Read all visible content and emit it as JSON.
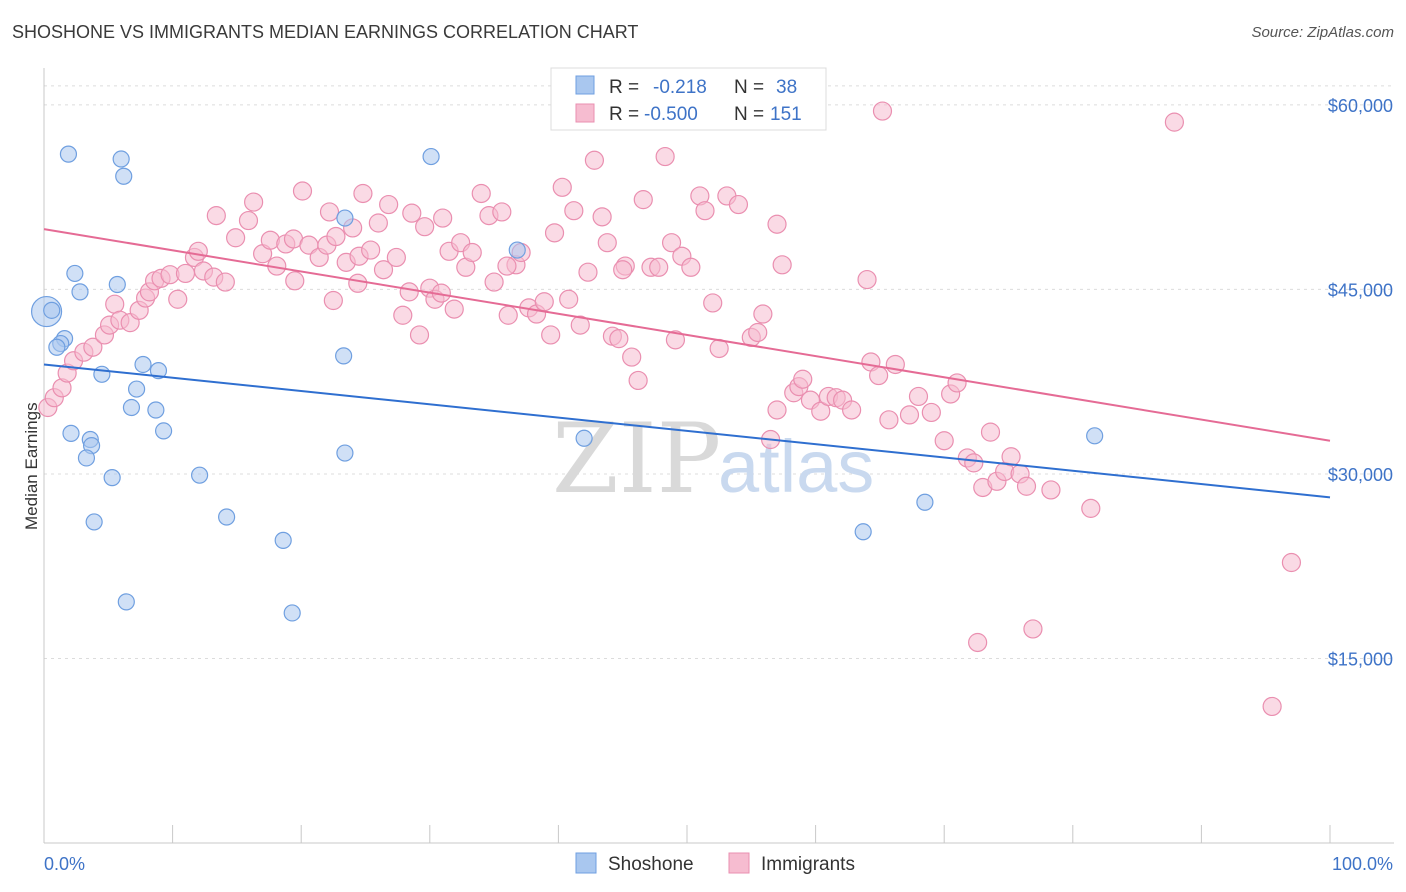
{
  "header": {
    "title": "SHOSHONE VS IMMIGRANTS MEDIAN EARNINGS CORRELATION CHART",
    "source": "Source: ZipAtlas.com"
  },
  "watermark": {
    "zip": "ZIP",
    "atlas": "atlas"
  },
  "legend": {
    "rows": [
      {
        "r_label": "R =",
        "r_value": "-0.218",
        "n_label": "N =",
        "n_value": "38",
        "color": "#a9c7ef",
        "stroke": "#6f9fe0"
      },
      {
        "r_label": "R =",
        "r_value": "-0.500",
        "n_label": "N =",
        "n_value": "151",
        "color": "#f6bcd0",
        "stroke": "#ea8fb0"
      }
    ],
    "bottom": [
      {
        "label": "Shoshone",
        "color": "#a9c7ef",
        "stroke": "#6f9fe0"
      },
      {
        "label": "Immigrants",
        "color": "#f6bcd0",
        "stroke": "#ea8fb0"
      }
    ]
  },
  "chart_data": {
    "type": "scatter",
    "title": "SHOSHONE VS IMMIGRANTS MEDIAN EARNINGS CORRELATION CHART",
    "xlabel": "",
    "ylabel": "Median Earnings",
    "xlim": [
      0,
      100
    ],
    "ylim": [
      0,
      63000
    ],
    "x_tick_labels": [
      "0.0%",
      "100.0%"
    ],
    "y_ticks": [
      15000,
      30000,
      45000,
      60000
    ],
    "y_tick_labels": [
      "$15,000",
      "$30,000",
      "$45,000",
      "$60,000"
    ],
    "grid": true,
    "series": [
      {
        "name": "Shoshone",
        "color": "#6f9fe0",
        "fill": "#a9c7ef",
        "trend": {
          "x": [
            0,
            100
          ],
          "y": [
            38900,
            28100
          ]
        },
        "points": [
          {
            "x": 0.2,
            "y": 43200,
            "big": true
          },
          {
            "x": 1.9,
            "y": 56000
          },
          {
            "x": 6.2,
            "y": 54200
          },
          {
            "x": 6.0,
            "y": 55600
          },
          {
            "x": 30.1,
            "y": 55800
          },
          {
            "x": 2.4,
            "y": 46300
          },
          {
            "x": 5.7,
            "y": 45400
          },
          {
            "x": 2.8,
            "y": 44800
          },
          {
            "x": 1.6,
            "y": 41000
          },
          {
            "x": 1.3,
            "y": 40600
          },
          {
            "x": 1.0,
            "y": 40300
          },
          {
            "x": 23.3,
            "y": 39600
          },
          {
            "x": 7.7,
            "y": 38900
          },
          {
            "x": 4.5,
            "y": 38100
          },
          {
            "x": 8.9,
            "y": 38400
          },
          {
            "x": 7.2,
            "y": 36900
          },
          {
            "x": 6.8,
            "y": 35400
          },
          {
            "x": 8.7,
            "y": 35200
          },
          {
            "x": 9.3,
            "y": 33500
          },
          {
            "x": 2.1,
            "y": 33300
          },
          {
            "x": 3.6,
            "y": 32800
          },
          {
            "x": 3.7,
            "y": 32300
          },
          {
            "x": 3.3,
            "y": 31300
          },
          {
            "x": 23.4,
            "y": 31700
          },
          {
            "x": 5.3,
            "y": 29700
          },
          {
            "x": 12.1,
            "y": 29900
          },
          {
            "x": 3.9,
            "y": 26100
          },
          {
            "x": 14.2,
            "y": 26500
          },
          {
            "x": 18.6,
            "y": 24600
          },
          {
            "x": 6.4,
            "y": 19600
          },
          {
            "x": 19.3,
            "y": 18700
          },
          {
            "x": 63.7,
            "y": 25300
          },
          {
            "x": 68.5,
            "y": 27700
          },
          {
            "x": 81.7,
            "y": 33100
          },
          {
            "x": 42.0,
            "y": 32900
          },
          {
            "x": 36.8,
            "y": 48200
          },
          {
            "x": 23.4,
            "y": 50800
          },
          {
            "x": 0.6,
            "y": 43300
          }
        ]
      },
      {
        "name": "Immigrants",
        "color": "#ea8fb0",
        "fill": "#f6bcd0",
        "trend": {
          "x": [
            0,
            100
          ],
          "y": [
            49900,
            32700
          ]
        },
        "points": [
          {
            "x": 0.3,
            "y": 35400
          },
          {
            "x": 0.8,
            "y": 36200
          },
          {
            "x": 1.4,
            "y": 37000
          },
          {
            "x": 1.8,
            "y": 38200
          },
          {
            "x": 2.3,
            "y": 39200
          },
          {
            "x": 3.1,
            "y": 39900
          },
          {
            "x": 3.8,
            "y": 40300
          },
          {
            "x": 4.7,
            "y": 41300
          },
          {
            "x": 5.1,
            "y": 42100
          },
          {
            "x": 5.5,
            "y": 43800
          },
          {
            "x": 5.9,
            "y": 42500
          },
          {
            "x": 6.7,
            "y": 42300
          },
          {
            "x": 7.4,
            "y": 43300
          },
          {
            "x": 7.9,
            "y": 44300
          },
          {
            "x": 8.2,
            "y": 44800
          },
          {
            "x": 8.6,
            "y": 45700
          },
          {
            "x": 9.1,
            "y": 45900
          },
          {
            "x": 9.8,
            "y": 46200
          },
          {
            "x": 10.4,
            "y": 44200
          },
          {
            "x": 11.0,
            "y": 46300
          },
          {
            "x": 11.7,
            "y": 47600
          },
          {
            "x": 12.4,
            "y": 46500
          },
          {
            "x": 13.2,
            "y": 46000
          },
          {
            "x": 14.1,
            "y": 45600
          },
          {
            "x": 12.0,
            "y": 48100
          },
          {
            "x": 13.4,
            "y": 51000
          },
          {
            "x": 14.9,
            "y": 49200
          },
          {
            "x": 15.9,
            "y": 50600
          },
          {
            "x": 16.3,
            "y": 52100
          },
          {
            "x": 17.0,
            "y": 47900
          },
          {
            "x": 17.6,
            "y": 49000
          },
          {
            "x": 18.1,
            "y": 46900
          },
          {
            "x": 18.8,
            "y": 48700
          },
          {
            "x": 19.4,
            "y": 49100
          },
          {
            "x": 19.5,
            "y": 45700
          },
          {
            "x": 20.1,
            "y": 53000
          },
          {
            "x": 20.6,
            "y": 48600
          },
          {
            "x": 21.4,
            "y": 47600
          },
          {
            "x": 22.0,
            "y": 48600
          },
          {
            "x": 22.7,
            "y": 49300
          },
          {
            "x": 22.2,
            "y": 51300
          },
          {
            "x": 23.5,
            "y": 47200
          },
          {
            "x": 24.0,
            "y": 50000
          },
          {
            "x": 24.5,
            "y": 47700
          },
          {
            "x": 24.8,
            "y": 52800
          },
          {
            "x": 25.4,
            "y": 48200
          },
          {
            "x": 26.0,
            "y": 50400
          },
          {
            "x": 26.4,
            "y": 46600
          },
          {
            "x": 26.8,
            "y": 51900
          },
          {
            "x": 27.4,
            "y": 47600
          },
          {
            "x": 27.9,
            "y": 42900
          },
          {
            "x": 28.4,
            "y": 44800
          },
          {
            "x": 28.6,
            "y": 51200
          },
          {
            "x": 29.2,
            "y": 41300
          },
          {
            "x": 29.6,
            "y": 50100
          },
          {
            "x": 30.0,
            "y": 45100
          },
          {
            "x": 30.4,
            "y": 44200
          },
          {
            "x": 30.9,
            "y": 44700
          },
          {
            "x": 31.5,
            "y": 48100
          },
          {
            "x": 31.9,
            "y": 43400
          },
          {
            "x": 32.4,
            "y": 48800
          },
          {
            "x": 32.8,
            "y": 46800
          },
          {
            "x": 33.3,
            "y": 48000
          },
          {
            "x": 34.0,
            "y": 52800
          },
          {
            "x": 34.6,
            "y": 51000
          },
          {
            "x": 35.0,
            "y": 45600
          },
          {
            "x": 35.6,
            "y": 51300
          },
          {
            "x": 36.1,
            "y": 42900
          },
          {
            "x": 36.7,
            "y": 47000
          },
          {
            "x": 37.1,
            "y": 48000
          },
          {
            "x": 37.7,
            "y": 43500
          },
          {
            "x": 38.3,
            "y": 43000
          },
          {
            "x": 38.9,
            "y": 44000
          },
          {
            "x": 39.4,
            "y": 41300
          },
          {
            "x": 39.7,
            "y": 49600
          },
          {
            "x": 40.3,
            "y": 53300
          },
          {
            "x": 40.8,
            "y": 44200
          },
          {
            "x": 41.2,
            "y": 51400
          },
          {
            "x": 41.7,
            "y": 42100
          },
          {
            "x": 42.3,
            "y": 46400
          },
          {
            "x": 42.8,
            "y": 55500
          },
          {
            "x": 43.4,
            "y": 50900
          },
          {
            "x": 43.8,
            "y": 48800
          },
          {
            "x": 44.2,
            "y": 41200
          },
          {
            "x": 44.7,
            "y": 41000
          },
          {
            "x": 45.2,
            "y": 46900
          },
          {
            "x": 45.7,
            "y": 39500
          },
          {
            "x": 46.2,
            "y": 37600
          },
          {
            "x": 46.6,
            "y": 52300
          },
          {
            "x": 47.2,
            "y": 46800
          },
          {
            "x": 47.8,
            "y": 46800
          },
          {
            "x": 48.3,
            "y": 55800
          },
          {
            "x": 48.8,
            "y": 48800
          },
          {
            "x": 49.1,
            "y": 40900
          },
          {
            "x": 49.6,
            "y": 47700
          },
          {
            "x": 50.3,
            "y": 46800
          },
          {
            "x": 51.0,
            "y": 52600
          },
          {
            "x": 51.4,
            "y": 51400
          },
          {
            "x": 52.0,
            "y": 43900
          },
          {
            "x": 52.5,
            "y": 40200
          },
          {
            "x": 53.1,
            "y": 52600
          },
          {
            "x": 54.0,
            "y": 51900
          },
          {
            "x": 55.0,
            "y": 41100
          },
          {
            "x": 55.5,
            "y": 41500
          },
          {
            "x": 55.9,
            "y": 43000
          },
          {
            "x": 56.5,
            "y": 32800
          },
          {
            "x": 57.0,
            "y": 35200
          },
          {
            "x": 57.4,
            "y": 47000
          },
          {
            "x": 58.3,
            "y": 36600
          },
          {
            "x": 58.7,
            "y": 37100
          },
          {
            "x": 59.0,
            "y": 37700
          },
          {
            "x": 59.6,
            "y": 36000
          },
          {
            "x": 60.4,
            "y": 35100
          },
          {
            "x": 61.0,
            "y": 36300
          },
          {
            "x": 61.6,
            "y": 36200
          },
          {
            "x": 62.1,
            "y": 36000
          },
          {
            "x": 62.8,
            "y": 35200
          },
          {
            "x": 64.0,
            "y": 45800
          },
          {
            "x": 64.3,
            "y": 39100
          },
          {
            "x": 64.9,
            "y": 38000
          },
          {
            "x": 65.7,
            "y": 34400
          },
          {
            "x": 66.2,
            "y": 38900
          },
          {
            "x": 67.3,
            "y": 34800
          },
          {
            "x": 68.0,
            "y": 36300
          },
          {
            "x": 69.0,
            "y": 35000
          },
          {
            "x": 70.0,
            "y": 32700
          },
          {
            "x": 70.5,
            "y": 36500
          },
          {
            "x": 71.0,
            "y": 37400
          },
          {
            "x": 71.8,
            "y": 31300
          },
          {
            "x": 72.3,
            "y": 30900
          },
          {
            "x": 73.0,
            "y": 28900
          },
          {
            "x": 73.6,
            "y": 33400
          },
          {
            "x": 74.1,
            "y": 29400
          },
          {
            "x": 74.7,
            "y": 30200
          },
          {
            "x": 75.2,
            "y": 31400
          },
          {
            "x": 75.9,
            "y": 30000
          },
          {
            "x": 76.4,
            "y": 29000
          },
          {
            "x": 78.3,
            "y": 28700
          },
          {
            "x": 72.6,
            "y": 16300
          },
          {
            "x": 76.9,
            "y": 17400
          },
          {
            "x": 81.4,
            "y": 27200
          },
          {
            "x": 87.9,
            "y": 58600
          },
          {
            "x": 97.0,
            "y": 22800
          },
          {
            "x": 95.5,
            "y": 11100
          },
          {
            "x": 65.2,
            "y": 59500
          },
          {
            "x": 45.0,
            "y": 46600
          },
          {
            "x": 36.0,
            "y": 46900
          },
          {
            "x": 57.0,
            "y": 50300
          },
          {
            "x": 31.0,
            "y": 50800
          },
          {
            "x": 22.5,
            "y": 44100
          },
          {
            "x": 24.4,
            "y": 45500
          }
        ]
      }
    ]
  }
}
